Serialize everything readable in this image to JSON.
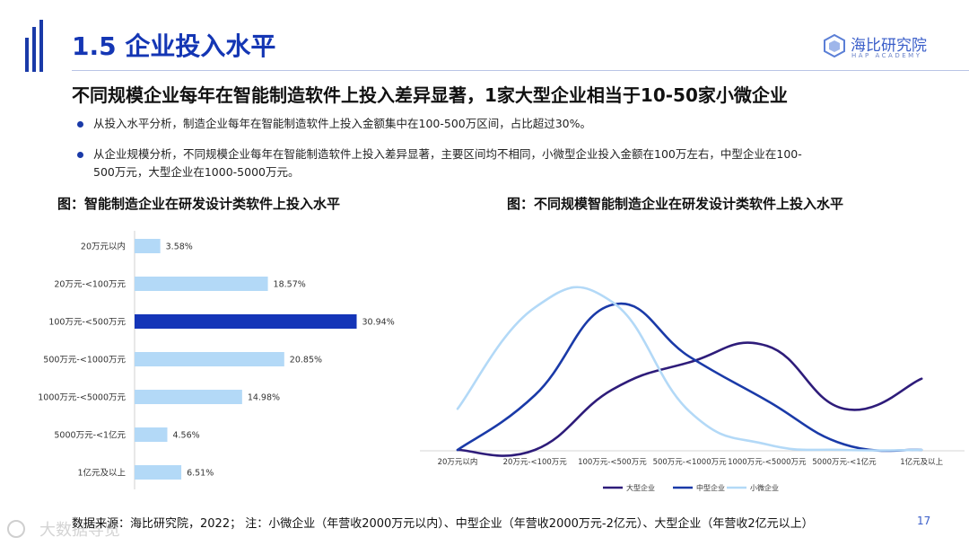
{
  "header": {
    "title": "1.5 企业投入水平",
    "brand_name": "海比研究院",
    "brand_sub": "HAP ACADEMY"
  },
  "headline": "不同规模企业每年在智能制造软件上投入差异显著，1家大型企业相当于10-50家小微企业",
  "bullets": [
    "从投入水平分析，制造企业每年在智能制造软件上投入金额集中在100-500万区间，占比超过30%。",
    "从企业规模分析，不同规模企业每年在智能制造软件上投入差异显著，主要区间均不相同，小微型企业投入金额在100万左右，中型企业在100-500万元，大型企业在1000-5000万元。"
  ],
  "charts": {
    "left_title": "图：智能制造企业在研发设计类软件上投入水平",
    "right_title": "图：不同规模智能制造企业在研发设计类软件上投入水平"
  },
  "colors": {
    "bar": "#b3d9f7",
    "bar_highlight": "#1435b8",
    "large": "#2e1c7a",
    "medium": "#1a3aa8",
    "small": "#b3d9f7"
  },
  "chart_data": [
    {
      "type": "bar",
      "orientation": "horizontal",
      "title": "图：智能制造企业在研发设计类软件上投入水平",
      "categories": [
        "20万元以内",
        "20万元-<100万元",
        "100万元-<500万元",
        "500万元-<1000万元",
        "1000万元-<5000万元",
        "5000万元-<1亿元",
        "1亿元及以上"
      ],
      "values": [
        3.58,
        18.57,
        30.94,
        20.85,
        14.98,
        4.56,
        6.51
      ],
      "labels": [
        "3.58%",
        "18.57%",
        "30.94%",
        "20.85%",
        "14.98%",
        "4.56%",
        "6.51%"
      ],
      "highlight_index": 2,
      "xlim": [
        0,
        35
      ],
      "grid": false
    },
    {
      "type": "line",
      "smooth": true,
      "title": "图：不同规模智能制造企业在研发设计类软件上投入水平",
      "categories": [
        "20万元以内",
        "20万元-<100万元",
        "100万元-<500万元",
        "500万元-<1000万元",
        "1000万元-<5000万元",
        "5000万元-<1亿元",
        "1亿元及以上"
      ],
      "series": [
        {
          "name": "大型企业",
          "values": [
            0,
            0,
            11,
            16,
            19,
            7.5,
            13
          ]
        },
        {
          "name": "中型企业",
          "values": [
            0,
            10,
            26.5,
            17,
            9,
            1,
            0
          ]
        },
        {
          "name": "小微企业",
          "values": [
            7.5,
            26,
            27,
            7,
            1,
            0,
            0
          ]
        }
      ],
      "ylim": [
        0,
        30
      ],
      "legend": "bottom",
      "grid": false,
      "y_axis_visible": false
    }
  ],
  "footer": {
    "source": "数据来源：海比研究院，2022；  注：小微企业（年营收2000万元以内）、中型企业（年营收2000万元-2亿元）、大型企业（年营收2亿元以上）",
    "page_number": "17",
    "watermark": "大数据导览"
  }
}
